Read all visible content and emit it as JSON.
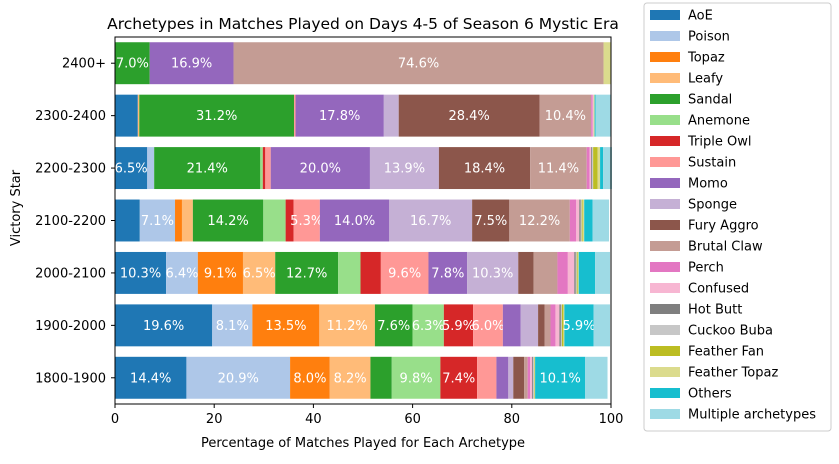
{
  "chart_data": {
    "type": "bar",
    "orientation": "horizontal",
    "stacked": true,
    "title": "Archetypes in Matches Played on Days 4-5 of Season 6 Mystic Era",
    "xlabel": "Percentage of Matches Played for Each Archetype",
    "ylabel": "Victory Star",
    "xlim": [
      0,
      100
    ],
    "xticks": [
      0,
      20,
      40,
      60,
      80,
      100
    ],
    "grid": false,
    "legend_position": "outside-right",
    "label_threshold": 5,
    "categories": [
      "1800-1900",
      "1900-2000",
      "2000-2100",
      "2100-2200",
      "2200-2300",
      "2300-2400",
      "2400+"
    ],
    "series": [
      {
        "name": "AoE",
        "color": "#1f77b4",
        "label_color": "#ffffff",
        "values": [
          14.4,
          19.6,
          10.3,
          5.0,
          6.5,
          4.6,
          0
        ]
      },
      {
        "name": "Poison",
        "color": "#aec7e8",
        "label_color": "#ffffff",
        "values": [
          20.9,
          8.1,
          6.4,
          7.1,
          1.4,
          0,
          0
        ]
      },
      {
        "name": "Topaz",
        "color": "#ff7f0e",
        "label_color": "#ffffff",
        "values": [
          8.0,
          13.5,
          9.1,
          1.4,
          0,
          0,
          0
        ]
      },
      {
        "name": "Leafy",
        "color": "#ffbb78",
        "label_color": "#ffffff",
        "values": [
          8.2,
          11.2,
          6.5,
          2.2,
          0,
          0.3,
          0
        ]
      },
      {
        "name": "Sandal",
        "color": "#2ca02c",
        "label_color": "#ffffff",
        "values": [
          4.3,
          7.6,
          12.7,
          14.2,
          21.4,
          31.2,
          7.0
        ]
      },
      {
        "name": "Anemone",
        "color": "#98df8a",
        "label_color": "#ffffff",
        "values": [
          9.8,
          6.3,
          4.5,
          4.5,
          0.5,
          0,
          0
        ]
      },
      {
        "name": "Triple Owl",
        "color": "#d62728",
        "label_color": "#ffffff",
        "values": [
          7.4,
          5.9,
          4.1,
          1.6,
          0.5,
          0,
          0
        ]
      },
      {
        "name": "Sustain",
        "color": "#ff9896",
        "label_color": "#ffffff",
        "values": [
          3.9,
          6.0,
          9.6,
          5.3,
          1.1,
          0.3,
          0
        ]
      },
      {
        "name": "Momo",
        "color": "#9467bd",
        "label_color": "#ffffff",
        "values": [
          2.4,
          3.6,
          7.8,
          14.0,
          20.0,
          17.8,
          16.9
        ]
      },
      {
        "name": "Sponge",
        "color": "#c5b0d5",
        "label_color": "#ffffff",
        "values": [
          1.0,
          3.5,
          10.3,
          16.7,
          13.9,
          3.0,
          0
        ]
      },
      {
        "name": "Fury Aggro",
        "color": "#8c564b",
        "label_color": "#ffffff",
        "values": [
          2.2,
          1.3,
          3.1,
          7.5,
          18.4,
          28.4,
          0
        ]
      },
      {
        "name": "Brutal Claw",
        "color": "#c49c94",
        "label_color": "#ffffff",
        "values": [
          0.7,
          1.2,
          4.8,
          12.2,
          11.4,
          10.4,
          74.6
        ]
      },
      {
        "name": "Perch",
        "color": "#e377c2",
        "label_color": "#ffffff",
        "values": [
          0.5,
          1.0,
          2.1,
          1.3,
          0.6,
          0.3,
          0
        ]
      },
      {
        "name": "Confused",
        "color": "#f7b6d2",
        "label_color": "#ffffff",
        "values": [
          0.4,
          0.8,
          1.3,
          0.6,
          0.3,
          0.2,
          0
        ]
      },
      {
        "name": "Hot Butt",
        "color": "#7f7f7f",
        "label_color": "#ffffff",
        "values": [
          0.2,
          0.3,
          0.3,
          0.3,
          0.2,
          0,
          0
        ]
      },
      {
        "name": "Cuckoo Buba",
        "color": "#c7c7c7",
        "label_color": "#ffffff",
        "values": [
          0.2,
          0.2,
          0.2,
          0.2,
          0.2,
          0,
          0
        ]
      },
      {
        "name": "Feather Fan",
        "color": "#bcbd22",
        "label_color": "#ffffff",
        "values": [
          0.1,
          0.3,
          0.2,
          0.2,
          0.9,
          0,
          0
        ]
      },
      {
        "name": "Feather Topaz",
        "color": "#dbdb8d",
        "label_color": "#ffffff",
        "values": [
          0.1,
          0.2,
          0.2,
          0.3,
          0.5,
          0.2,
          1.5
        ]
      },
      {
        "name": "Others",
        "color": "#17becf",
        "label_color": "#ffffff",
        "values": [
          10.1,
          5.9,
          3.3,
          1.7,
          0.6,
          0.2,
          0
        ]
      },
      {
        "name": "Multiple archetypes",
        "color": "#9edae5",
        "label_color": "#ffffff",
        "values": [
          4.5,
          3.3,
          3.0,
          3.3,
          1.8,
          3.0,
          0
        ]
      }
    ]
  }
}
